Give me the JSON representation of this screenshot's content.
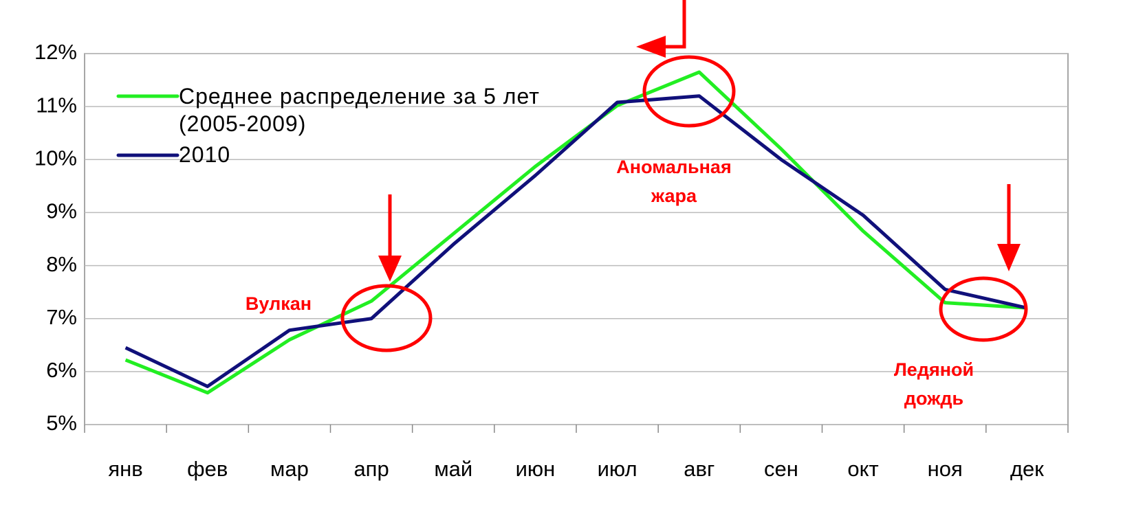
{
  "chart_data": {
    "type": "line",
    "categories": [
      "янв",
      "фев",
      "мар",
      "апр",
      "май",
      "июн",
      "июл",
      "авг",
      "сен",
      "окт",
      "ноя",
      "дек"
    ],
    "series": [
      {
        "name": "Среднее распределение за 5 лет (2005-2009)",
        "color": "#22ee22",
        "values": [
          6.22,
          5.6,
          6.6,
          7.33,
          8.6,
          9.87,
          11.02,
          11.65,
          10.2,
          8.65,
          7.3,
          7.2
        ]
      },
      {
        "name": "2010",
        "color": "#10107a",
        "values": [
          6.45,
          5.72,
          6.78,
          7.0,
          8.4,
          9.7,
          11.08,
          11.2,
          10.0,
          8.95,
          7.55,
          7.2
        ]
      }
    ],
    "ylim": [
      5,
      12
    ],
    "yticks": [
      {
        "value": 5,
        "label": "5%"
      },
      {
        "value": 6,
        "label": "6%"
      },
      {
        "value": 7,
        "label": "7%"
      },
      {
        "value": 8,
        "label": "8%"
      },
      {
        "value": 9,
        "label": "9%"
      },
      {
        "value": 10,
        "label": "10%"
      },
      {
        "value": 11,
        "label": "11%"
      },
      {
        "value": 12,
        "label": "12%"
      }
    ],
    "grid": true,
    "legend": "upper-left",
    "annotations": [
      {
        "lines": [
          "Вулкан"
        ]
      },
      {
        "lines": [
          "Аномальная",
          "жара"
        ]
      },
      {
        "lines": [
          "Ледяной",
          "дождь"
        ]
      }
    ]
  }
}
